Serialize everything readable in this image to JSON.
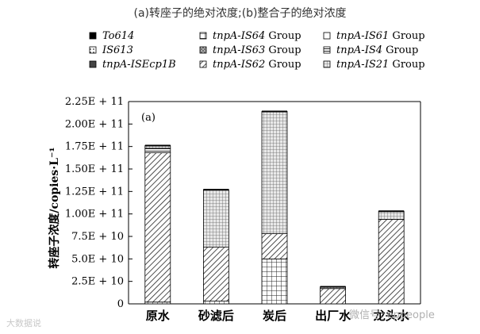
{
  "caption": "(a)转座子的绝对浓度;(b)整合子的绝对浓度",
  "chart_data": {
    "type": "bar",
    "stacked": true,
    "panel_label": "(a)",
    "ylabel": "转座子浓度/copies·L⁻¹",
    "xlabel": "",
    "ylim": [
      0,
      225000000000.0
    ],
    "yticks": [
      0,
      25000000000.0,
      50000000000.0,
      75000000000.0,
      100000000000.0,
      125000000000.0,
      150000000000.0,
      175000000000.0,
      200000000000.0,
      225000000000.0
    ],
    "ytick_labels": [
      "0",
      "2.5E + 10",
      "5.0E + 10",
      "7.5E + 10",
      "1.00E + 11",
      "1.25E + 11",
      "1.50E + 11",
      "1.75E + 11",
      "2.00E + 11",
      "2.25E + 11"
    ],
    "grid": false,
    "legend_position": "top",
    "categories": [
      "原水",
      "砂滤后",
      "炭后",
      "出厂水",
      "龙头水"
    ],
    "series": [
      {
        "name": "To614",
        "pattern": "solid",
        "values": [
          0,
          0,
          0,
          0,
          0
        ]
      },
      {
        "name": "IS613",
        "pattern": "dots",
        "values": [
          0,
          0,
          0,
          0,
          0
        ]
      },
      {
        "name": "tnpA-ISEcp1B",
        "pattern": "dark",
        "values": [
          0,
          0,
          0,
          0,
          0
        ]
      },
      {
        "name": "tnpA-IS64 Group",
        "pattern": "grid",
        "values": [
          2000000000.0,
          3000000000.0,
          50000000000.0,
          0,
          0
        ]
      },
      {
        "name": "tnpA-IS63 Group",
        "pattern": "xhatch",
        "values": [
          0,
          0,
          0,
          0,
          0
        ]
      },
      {
        "name": "tnpA-IS62 Group",
        "pattern": "diag",
        "values": [
          166000000000.0,
          60000000000.0,
          28000000000.0,
          17000000000.0,
          94000000000.0
        ]
      },
      {
        "name": "tnpA-IS61 Group",
        "pattern": "white",
        "values": [
          0,
          0,
          0,
          0,
          0
        ]
      },
      {
        "name": "tnpA-IS4 Group",
        "pattern": "hline",
        "values": [
          5000000000.0,
          0,
          0,
          0,
          0
        ]
      },
      {
        "name": "tnpA-IS21 Group",
        "pattern": "fine",
        "values": [
          3000000000.0,
          64000000000.0,
          136000000000.0,
          2000000000.0,
          9000000000.0
        ]
      }
    ]
  },
  "watermarks": {
    "left": "大数据说",
    "right": "微信号: eppeople"
  }
}
